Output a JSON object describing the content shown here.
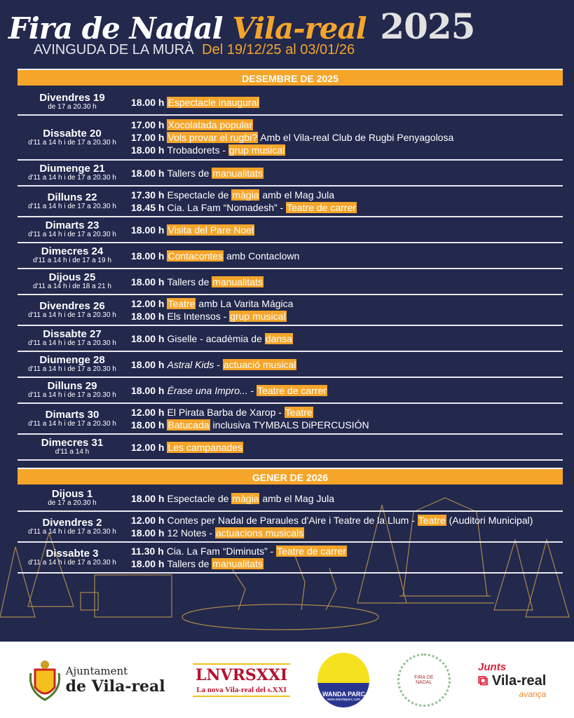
{
  "header": {
    "title_part1": "Fira de Nadal",
    "title_part2": "Vila-real",
    "year": "2025",
    "location": "AVINGUDA DE LA MURÀ",
    "dates": "Del 19/12/25 al 03/01/26"
  },
  "colors": {
    "background": "#23284d",
    "accent": "#f4a52a"
  },
  "months": [
    {
      "label": "DESEMBRE DE 2025",
      "days": [
        {
          "name": "Divendres 19",
          "hours": "de 17 a 20.30 h",
          "events": [
            {
              "time": "18.00 h",
              "parts": [
                {
                  "t": "Espectacle inaugural",
                  "hl": true
                }
              ]
            }
          ]
        },
        {
          "name": "Dissabte 20",
          "hours": "d'11 a 14 h i de 17 a 20.30 h",
          "events": [
            {
              "time": "17.00 h",
              "parts": [
                {
                  "t": "Xocolatada popular",
                  "hl": true
                }
              ]
            },
            {
              "time": "17.00 h",
              "parts": [
                {
                  "t": "Vols provar el rugbi?",
                  "hl": true
                },
                {
                  "t": " Amb el Vila-real Club de Rugbi Penyagolosa"
                }
              ]
            },
            {
              "time": "18.00 h",
              "parts": [
                {
                  "t": "Trobadorets - "
                },
                {
                  "t": "grup musical",
                  "hl": true
                }
              ]
            }
          ]
        },
        {
          "name": "Diumenge 21",
          "hours": "d'11 a 14 h i de 17 a 20.30 h",
          "events": [
            {
              "time": "18.00 h",
              "parts": [
                {
                  "t": "Tallers de "
                },
                {
                  "t": "manualitats",
                  "hl": true
                }
              ]
            }
          ]
        },
        {
          "name": "Dilluns 22",
          "hours": "d'11 a 14 h i de 17 a 20.30 h",
          "events": [
            {
              "time": "17.30 h",
              "parts": [
                {
                  "t": "Espectacle de "
                },
                {
                  "t": "màgia",
                  "hl": true
                },
                {
                  "t": " amb el Mag Jula"
                }
              ]
            },
            {
              "time": "18.45 h",
              "parts": [
                {
                  "t": "Cia. La Fam “Nomadesh” - "
                },
                {
                  "t": "Teatre de carrer",
                  "hl": true
                }
              ]
            }
          ]
        },
        {
          "name": "Dimarts 23",
          "hours": "d'11 a 14 h i de 17 a 20.30 h",
          "events": [
            {
              "time": "18.00 h",
              "parts": [
                {
                  "t": "Visita del Pare Noel",
                  "hl": true
                }
              ]
            }
          ]
        },
        {
          "name": "Dimecres 24",
          "hours": "d'11 a 14 h i de 17 a 19 h",
          "events": [
            {
              "time": "18.00 h",
              "parts": [
                {
                  "t": "Contacontes",
                  "hl": true
                },
                {
                  "t": " amb Contaclown"
                }
              ]
            }
          ]
        },
        {
          "name": "Dijous 25",
          "hours": "d'11 a 14 h i de 18 a 21 h",
          "events": [
            {
              "time": "18.00 h",
              "parts": [
                {
                  "t": "Tallers de "
                },
                {
                  "t": "manualitats",
                  "hl": true
                }
              ]
            }
          ]
        },
        {
          "name": "Divendres 26",
          "hours": "d'11 a 14 h i de 17 a 20.30 h",
          "events": [
            {
              "time": "12.00 h",
              "parts": [
                {
                  "t": "Teatre",
                  "hl": true
                },
                {
                  "t": " amb La Varita Mágica"
                }
              ]
            },
            {
              "time": "18.00 h",
              "parts": [
                {
                  "t": "Els Intensos - "
                },
                {
                  "t": "grup musical",
                  "hl": true
                }
              ]
            }
          ]
        },
        {
          "name": "Dissabte 27",
          "hours": "d'11 a 14 h i de 17 a 20.30 h",
          "events": [
            {
              "time": "18.00 h",
              "parts": [
                {
                  "t": "Giselle - acadèmia de "
                },
                {
                  "t": "dansa",
                  "hl": true
                }
              ]
            }
          ]
        },
        {
          "name": "Diumenge 28",
          "hours": "d'11 a 14 h i de 17 a 20.30 h",
          "events": [
            {
              "time": "18.00 h",
              "parts": [
                {
                  "t": "Astral Kids",
                  "it": true
                },
                {
                  "t": " - "
                },
                {
                  "t": "actuació musical",
                  "hl": true
                }
              ]
            }
          ]
        },
        {
          "name": "Dilluns 29",
          "hours": "d'11 a 14 h i de 17 a 20.30 h",
          "events": [
            {
              "time": "18.00 h",
              "parts": [
                {
                  "t": "Érase una Impro...",
                  "it": true
                },
                {
                  "t": " - "
                },
                {
                  "t": "Teatre de carrer",
                  "hl": true
                }
              ]
            }
          ]
        },
        {
          "name": "Dimarts 30",
          "hours": "d'11 a 14 h i de 17 a 20.30 h",
          "events": [
            {
              "time": "12.00 h",
              "parts": [
                {
                  "t": "El Pirata Barba de Xarop - "
                },
                {
                  "t": "Teatre",
                  "hl": true
                }
              ]
            },
            {
              "time": "18.00 h",
              "parts": [
                {
                  "t": "Batucada",
                  "hl": true
                },
                {
                  "t": " inclusiva TYMBALS DiPERCUSIÓN"
                }
              ]
            }
          ]
        },
        {
          "name": "Dimecres 31",
          "hours": "d'11 a 14 h",
          "events": [
            {
              "time": "12.00 h",
              "parts": [
                {
                  "t": "Les campanades",
                  "hl": true
                }
              ]
            }
          ]
        }
      ]
    },
    {
      "label": "GENER DE 2026",
      "days": [
        {
          "name": "Dijous 1",
          "hours": "de 17 a 20.30 h",
          "events": [
            {
              "time": "18.00 h",
              "parts": [
                {
                  "t": "Espectacle de "
                },
                {
                  "t": "màgia",
                  "hl": true
                },
                {
                  "t": " amb el Mag Jula"
                }
              ]
            }
          ]
        },
        {
          "name": "Divendres 2",
          "hours": "d'11 a 14 h i de 17 a 20.30 h",
          "events": [
            {
              "time": "12.00 h",
              "parts": [
                {
                  "t": "Contes per Nadal de Paraules d'Aire i Teatre de la Llum - "
                },
                {
                  "t": "Teatre",
                  "hl": true
                },
                {
                  "t": " (Auditori Municipal)"
                }
              ]
            },
            {
              "time": "18.00 h",
              "parts": [
                {
                  "t": "12 Notes - "
                },
                {
                  "t": "actuacions musicals",
                  "hl": true
                }
              ]
            }
          ]
        },
        {
          "name": "Dissabte 3",
          "hours": "d'11 a 14 h i de 17 a 20.30 h",
          "events": [
            {
              "time": "11.30 h",
              "parts": [
                {
                  "t": "Cia. La Fam “Diminuts” - "
                },
                {
                  "t": "Teatre de carrer",
                  "hl": true
                }
              ]
            },
            {
              "time": "18.00 h",
              "parts": [
                {
                  "t": "Tallers de "
                },
                {
                  "t": "manualitats",
                  "hl": true
                }
              ]
            }
          ]
        }
      ]
    }
  ],
  "footer": {
    "logos": [
      {
        "line1": "Ajuntament",
        "line2": "de Vila-real"
      },
      {
        "line1": "LNVRSXXI",
        "line2": "La nova Vila-real del s.XXI"
      },
      {
        "line1": "WANDA PARC",
        "line2": "www.wandaparc.com"
      },
      {
        "line1": "FIRA DE NADAL"
      },
      {
        "line1": "Junts",
        "line2": "Vila-real",
        "line3": "avança"
      }
    ]
  }
}
